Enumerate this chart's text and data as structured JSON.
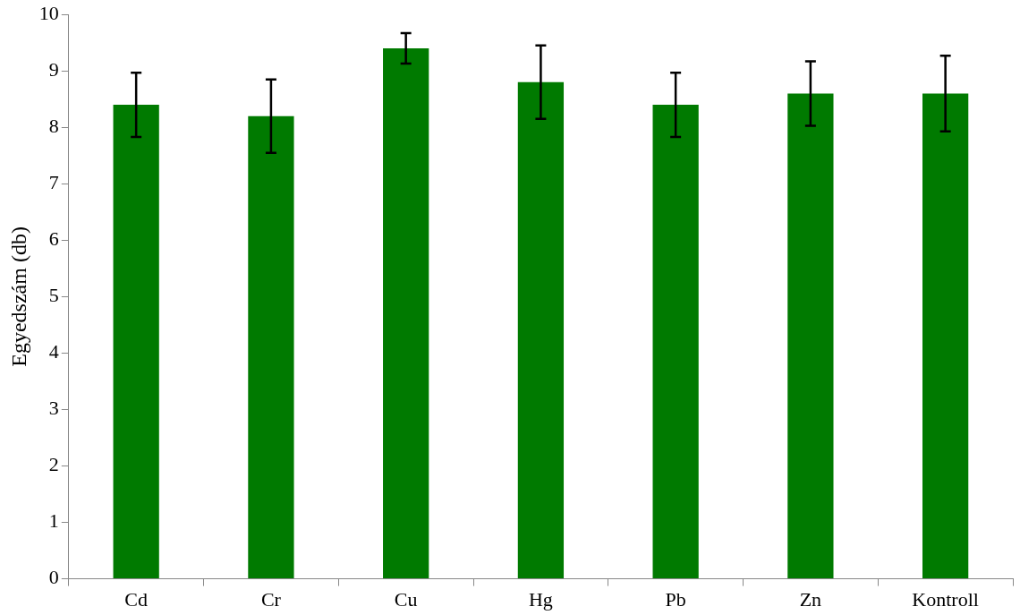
{
  "chart_data": {
    "type": "bar",
    "ylabel": "Egyedszám (db)",
    "categories": [
      "Cd",
      "Cr",
      "Cu",
      "Hg",
      "Pb",
      "Zn",
      "Kontroll"
    ],
    "values": [
      8.4,
      8.2,
      9.4,
      8.8,
      8.4,
      8.6,
      8.6
    ],
    "errors": [
      0.57,
      0.65,
      0.27,
      0.65,
      0.57,
      0.57,
      0.67
    ],
    "color": "#007a00",
    "ylim": [
      0,
      10
    ],
    "yticks": [
      0,
      1,
      2,
      3,
      4,
      5,
      6,
      7,
      8,
      9,
      10
    ],
    "grid": false,
    "legend": false
  }
}
